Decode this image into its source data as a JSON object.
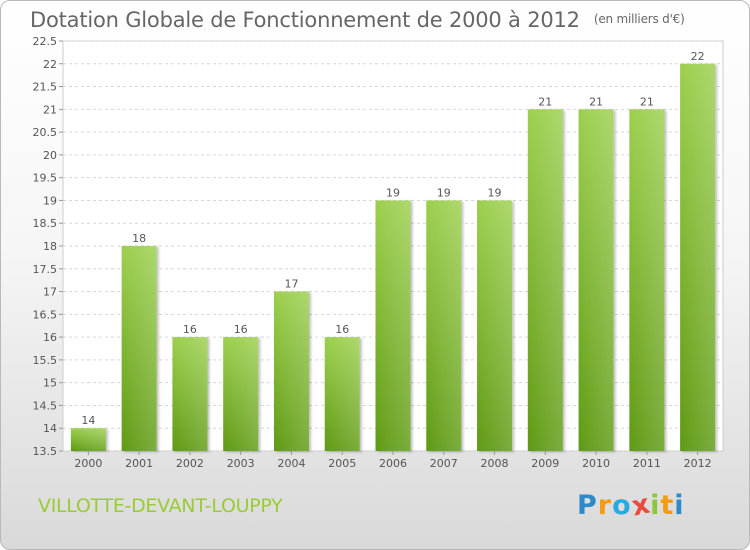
{
  "title": "Dotation Globale de Fonctionnement de 2000 à 2012",
  "unit": "(en milliers d'€)",
  "commune": "VILLOTTE-DEVANT-LOUPPY",
  "logo": {
    "letters": [
      "P",
      "r",
      "o",
      "x",
      "i",
      "t",
      "i"
    ],
    "colors": [
      "#2d89c8",
      "#f39c12",
      "#27a9e1",
      "#e74c3c",
      "#8cc63f",
      "#f39c12",
      "#2d89c8"
    ]
  },
  "chart_data": {
    "type": "bar",
    "title": "Dotation Globale de Fonctionnement de 2000 à 2012",
    "subtitle": "(en milliers d'€)",
    "categories": [
      "2000",
      "2001",
      "2002",
      "2003",
      "2004",
      "2005",
      "2006",
      "2007",
      "2008",
      "2009",
      "2010",
      "2011",
      "2012"
    ],
    "values": [
      14,
      18,
      16,
      16,
      17,
      16,
      19,
      19,
      19,
      21,
      21,
      21,
      22
    ],
    "data_labels": [
      "14",
      "18",
      "16",
      "16",
      "17",
      "16",
      "19",
      "19",
      "19",
      "21",
      "21",
      "21",
      "22"
    ],
    "ylim": [
      13.5,
      22.5
    ],
    "yticks": [
      "13.5",
      "14",
      "14.5",
      "15",
      "15.5",
      "16",
      "16.5",
      "17",
      "17.5",
      "18",
      "18.5",
      "19",
      "19.5",
      "20",
      "20.5",
      "21",
      "21.5",
      "22",
      "22.5"
    ],
    "grid": true,
    "bar_color": "#8cc63f",
    "xlabel": "",
    "ylabel": ""
  }
}
